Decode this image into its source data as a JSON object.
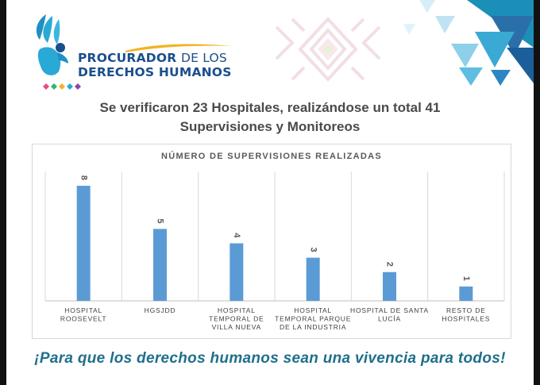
{
  "logo": {
    "line1_main": "PROCURADOR",
    "line1_tail": "DE LOS",
    "line2": "DERECHOS HUMANOS"
  },
  "headline": {
    "line1": "Se verificaron 23 Hospitales, realizándose un total 41",
    "line2": "Supervisiones y Monitoreos"
  },
  "chart_data": {
    "type": "bar",
    "title": "NÚMERO DE SUPERVISIONES REALIZADAS",
    "categories": [
      [
        "HOSPITAL",
        "ROOSEVELT"
      ],
      [
        "HGSJDD"
      ],
      [
        "HOSPITAL",
        "TEMPORAL DE",
        "VILLA NUEVA"
      ],
      [
        "HOSPITAL",
        "TEMPORAL PARQUE",
        "DE LA INDUSTRIA"
      ],
      [
        "HOSPITAL DE SANTA",
        "LUCÍA"
      ],
      [
        "RESTO DE",
        "HOSPITALES"
      ]
    ],
    "values": [
      8,
      5,
      4,
      3,
      2,
      1
    ],
    "ylim": [
      0,
      8
    ],
    "bar_color": "#5b9bd5",
    "grid": "vertical category separators"
  },
  "slogan": "¡Para que los derechos humanos sean una vivencia para todos!",
  "colors": {
    "headline": "#4a4a4a",
    "slogan": "#1f6f8b",
    "logo_blue": "#1a4f8c",
    "accent_cyan": "#29a9d6"
  }
}
